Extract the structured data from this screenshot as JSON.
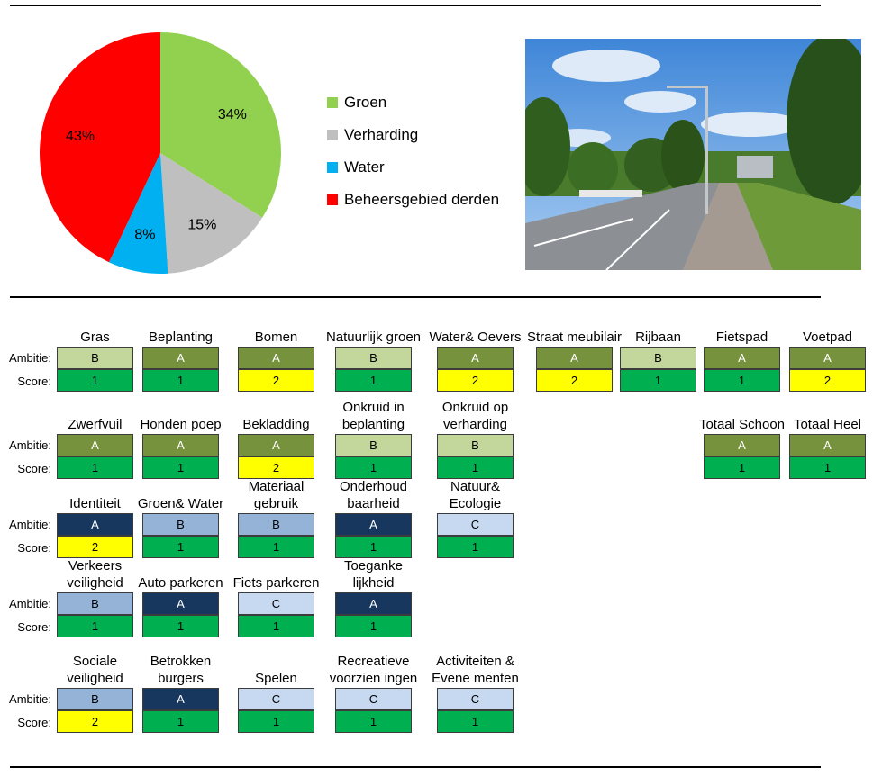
{
  "chart_data": {
    "type": "pie",
    "slices": [
      {
        "label": "Groen",
        "value": 34,
        "display": "34%",
        "color": "#92d050"
      },
      {
        "label": "Verharding",
        "value": 15,
        "display": "15%",
        "color": "#bfbfbf"
      },
      {
        "label": "Water",
        "value": 8,
        "display": "8%",
        "color": "#00b0f0"
      },
      {
        "label": "Beheersgebied derden",
        "value": 43,
        "display": "43%",
        "color": "#ff0000"
      }
    ],
    "legend_position": "right"
  },
  "photo": {
    "description_icon": "street-photo-icon"
  },
  "labels": {
    "ambitie": "Ambitie:",
    "score": "Score:"
  },
  "colors": {
    "score": {
      "1": "#00b050",
      "2": "#ffff00"
    },
    "ambitie_green": {
      "A": "#76923c",
      "B": "#c3d69b"
    },
    "ambitie_blue": {
      "A": "#17375e",
      "B": "#95b3d7",
      "C": "#c6d9f1"
    }
  },
  "groups": [
    {
      "palette": "ambitie_green",
      "items": [
        {
          "name": "Gras",
          "ambitie": "B",
          "score": "1"
        },
        {
          "name": "Beplanting",
          "ambitie": "A",
          "score": "1"
        },
        {
          "name": "Bomen",
          "ambitie": "A",
          "score": "2"
        },
        {
          "name": "Natuurlijk groen",
          "ambitie": "B",
          "score": "1"
        },
        {
          "name": "Water& Oevers",
          "ambitie": "A",
          "score": "2"
        },
        {
          "name": "Straat meubilair",
          "ambitie": "A",
          "score": "2"
        },
        {
          "name": "Rijbaan",
          "ambitie": "B",
          "score": "1"
        },
        {
          "name": "Fietspad",
          "ambitie": "A",
          "score": "1"
        },
        {
          "name": "Voetpad",
          "ambitie": "A",
          "score": "2"
        }
      ]
    },
    {
      "palette": "ambitie_green",
      "items": [
        {
          "name": "Zwerfvuil",
          "ambitie": "A",
          "score": "1"
        },
        {
          "name": "Honden poep",
          "ambitie": "A",
          "score": "1"
        },
        {
          "name": "Bekladding",
          "ambitie": "A",
          "score": "2"
        },
        {
          "name": "Onkruid in beplanting",
          "ambitie": "B",
          "score": "1"
        },
        {
          "name": "Onkruid op verharding",
          "ambitie": "B",
          "score": "1"
        },
        {
          "name": "Totaal Schoon",
          "ambitie": "A",
          "score": "1"
        },
        {
          "name": "Totaal Heel",
          "ambitie": "A",
          "score": "1"
        }
      ]
    },
    {
      "palette": "ambitie_blue",
      "items": [
        {
          "name": "Identiteit",
          "ambitie": "A",
          "score": "2"
        },
        {
          "name": "Groen& Water",
          "ambitie": "B",
          "score": "1"
        },
        {
          "name": "Materiaal gebruik",
          "ambitie": "B",
          "score": "1"
        },
        {
          "name": "Onderhoud baarheid",
          "ambitie": "A",
          "score": "1"
        },
        {
          "name": "Natuur& Ecologie",
          "ambitie": "C",
          "score": "1"
        }
      ]
    },
    {
      "palette": "ambitie_blue",
      "items": [
        {
          "name": "Verkeers veiligheid",
          "ambitie": "B",
          "score": "1"
        },
        {
          "name": "Auto parkeren",
          "ambitie": "A",
          "score": "1"
        },
        {
          "name": "Fiets parkeren",
          "ambitie": "C",
          "score": "1"
        },
        {
          "name": "Toeganke lijkheid",
          "ambitie": "A",
          "score": "1"
        }
      ]
    },
    {
      "palette": "ambitie_blue",
      "items": [
        {
          "name": "Sociale veiligheid",
          "ambitie": "B",
          "score": "2"
        },
        {
          "name": "Betrokken burgers",
          "ambitie": "A",
          "score": "1"
        },
        {
          "name": "Spelen",
          "ambitie": "C",
          "score": "1"
        },
        {
          "name": "Recreatieve voorzien ingen",
          "ambitie": "C",
          "score": "1"
        },
        {
          "name": "Activiteiten & Evene menten",
          "ambitie": "C",
          "score": "1"
        }
      ]
    }
  ]
}
